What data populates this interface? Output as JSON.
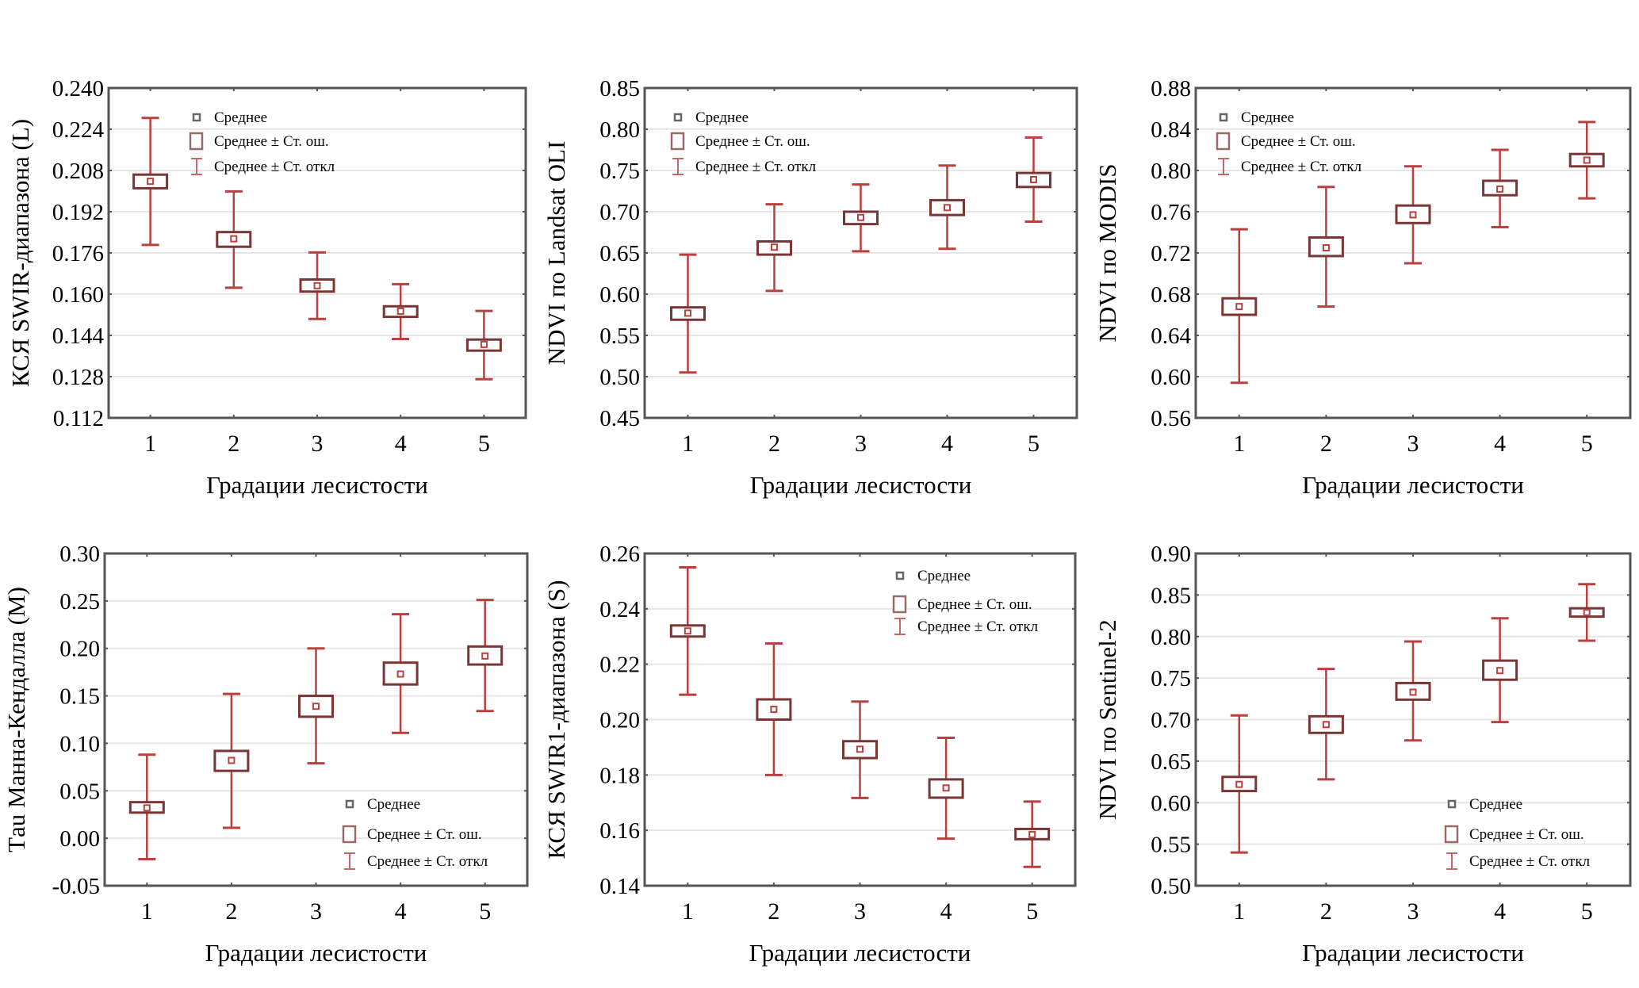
{
  "figure": {
    "colors": {
      "frame": "#555555",
      "grid": "#e6e6e6",
      "se_box": "#7a3535",
      "sd_whisker": "#b8413f",
      "mean_marker": "#b8413f",
      "legend_mean": "#666666",
      "legend_box": "#9a6a6a",
      "legend_whisker": "#cc6666"
    }
  },
  "chart_data": [
    {
      "type": "box",
      "title": "",
      "xlabel": "Градации лесистости",
      "ylabel": "КСЯ SWIR-диапазона (L)",
      "categories": [
        "1",
        "2",
        "3",
        "4",
        "5"
      ],
      "ylim": [
        0.112,
        0.24
      ],
      "yticks": [
        "0.240",
        "0.224",
        "0.208",
        "0.192",
        "0.176",
        "0.160",
        "0.144",
        "0.128",
        "0.112"
      ],
      "grid": true,
      "legend_position": "top-left",
      "legend": [
        "Среднее",
        "Среднее ± Ст. ош.",
        "Среднее ± Ст. откл"
      ],
      "series": [
        {
          "name": "Среднее",
          "values": [
            0.2038,
            0.1815,
            0.1633,
            0.1534,
            0.1405
          ]
        },
        {
          "name": "Среднее + Ст. ош.",
          "values": [
            0.2064,
            0.1841,
            0.1657,
            0.1553,
            0.1424
          ]
        },
        {
          "name": "Среднее - Ст. ош.",
          "values": [
            0.2011,
            0.1784,
            0.161,
            0.1512,
            0.1381
          ]
        },
        {
          "name": "Среднее + Ст. откл",
          "values": [
            0.2284,
            0.1999,
            0.1762,
            0.1639,
            0.1535
          ]
        },
        {
          "name": "Среднее - Ст. откл",
          "values": [
            0.1791,
            0.1625,
            0.1504,
            0.1426,
            0.127
          ]
        }
      ]
    },
    {
      "type": "box",
      "title": "",
      "xlabel": "Градации лесистости",
      "ylabel": "NDVI по Landsat OLI",
      "categories": [
        "1",
        "2",
        "3",
        "4",
        "5"
      ],
      "ylim": [
        0.45,
        0.85
      ],
      "yticks": [
        "0.85",
        "0.80",
        "0.75",
        "0.70",
        "0.65",
        "0.60",
        "0.55",
        "0.50",
        "0.45"
      ],
      "grid": true,
      "legend_position": "top-left",
      "legend": [
        "Среднее",
        "Среднее ± Ст. ош.",
        "Среднее ± Ст. откл"
      ],
      "series": [
        {
          "name": "Среднее",
          "values": [
            0.577,
            0.657,
            0.693,
            0.705,
            0.739
          ]
        },
        {
          "name": "Среднее + Ст. ош.",
          "values": [
            0.584,
            0.664,
            0.7,
            0.714,
            0.747
          ]
        },
        {
          "name": "Среднее - Ст. ош.",
          "values": [
            0.569,
            0.648,
            0.685,
            0.696,
            0.73
          ]
        },
        {
          "name": "Среднее + Ст. откл",
          "values": [
            0.648,
            0.709,
            0.733,
            0.756,
            0.79
          ]
        },
        {
          "name": "Среднее - Ст. откл",
          "values": [
            0.505,
            0.604,
            0.652,
            0.655,
            0.688
          ]
        }
      ]
    },
    {
      "type": "box",
      "title": "",
      "xlabel": "Градации лесистости",
      "ylabel": "NDVI по MODIS",
      "categories": [
        "1",
        "2",
        "3",
        "4",
        "5"
      ],
      "ylim": [
        0.56,
        0.88
      ],
      "yticks": [
        "0.88",
        "0.84",
        "0.80",
        "0.76",
        "0.72",
        "0.68",
        "0.64",
        "0.60",
        "0.56"
      ],
      "grid": true,
      "legend_position": "top-left",
      "legend": [
        "Среднее",
        "Среднее ± Ст. ош.",
        "Среднее ± Ст. откл"
      ],
      "series": [
        {
          "name": "Среднее",
          "values": [
            0.668,
            0.725,
            0.757,
            0.782,
            0.81
          ]
        },
        {
          "name": "Среднее + Ст. ош.",
          "values": [
            0.676,
            0.735,
            0.766,
            0.79,
            0.816
          ]
        },
        {
          "name": "Среднее - Ст. ош.",
          "values": [
            0.66,
            0.717,
            0.749,
            0.776,
            0.804
          ]
        },
        {
          "name": "Среднее + Ст. откл",
          "values": [
            0.743,
            0.784,
            0.804,
            0.82,
            0.847
          ]
        },
        {
          "name": "Среднее - Ст. откл",
          "values": [
            0.594,
            0.668,
            0.71,
            0.745,
            0.773
          ]
        }
      ]
    },
    {
      "type": "box",
      "title": "",
      "xlabel": "Градации лесистости",
      "ylabel": "Тau Манна-Кендалла (M)",
      "categories": [
        "1",
        "2",
        "3",
        "4",
        "5"
      ],
      "ylim": [
        -0.05,
        0.3
      ],
      "yticks": [
        "0.30",
        "0.25",
        "0.20",
        "0.15",
        "0.10",
        "0.05",
        "0.00",
        "-0.05"
      ],
      "grid": true,
      "legend_position": "bottom-right",
      "legend": [
        "Среднее",
        "Среднее ± Ст. ош.",
        "Среднее ± Ст. откл"
      ],
      "series": [
        {
          "name": "Среднее",
          "values": [
            0.032,
            0.082,
            0.139,
            0.173,
            0.192
          ]
        },
        {
          "name": "Среднее + Ст. ош.",
          "values": [
            0.038,
            0.092,
            0.15,
            0.185,
            0.202
          ]
        },
        {
          "name": "Среднее - Ст. ош.",
          "values": [
            0.027,
            0.071,
            0.128,
            0.162,
            0.183
          ]
        },
        {
          "name": "Среднее + Ст. откл",
          "values": [
            0.088,
            0.152,
            0.2,
            0.236,
            0.251
          ]
        },
        {
          "name": "Среднее - Ст. откл",
          "values": [
            -0.022,
            0.011,
            0.079,
            0.111,
            0.134
          ]
        }
      ]
    },
    {
      "type": "box",
      "title": "",
      "xlabel": "Градации лесистости",
      "ylabel": "КСЯ SWIR1-диапазона (S)",
      "categories": [
        "1",
        "2",
        "3",
        "4",
        "5"
      ],
      "ylim": [
        0.14,
        0.26
      ],
      "yticks": [
        "0.26",
        "0.24",
        "0.22",
        "0.20",
        "0.18",
        "0.16",
        "0.14"
      ],
      "grid": true,
      "legend_position": "top-right",
      "legend": [
        "Среднее",
        "Среднее ± Ст. ош.",
        "Среднее ± Ст. откл"
      ],
      "series": [
        {
          "name": "Среднее",
          "values": [
            0.232,
            0.2037,
            0.1893,
            0.1753,
            0.1585
          ]
        },
        {
          "name": "Среднее + Ст. ош.",
          "values": [
            0.234,
            0.2073,
            0.1922,
            0.1784,
            0.1605
          ]
        },
        {
          "name": "Среднее - Ст. ош.",
          "values": [
            0.23,
            0.2,
            0.1861,
            0.1718,
            0.1568
          ]
        },
        {
          "name": "Среднее + Ст. откл",
          "values": [
            0.255,
            0.2275,
            0.2065,
            0.1934,
            0.1704
          ]
        },
        {
          "name": "Среднее - Ст. откл",
          "values": [
            0.209,
            0.18,
            0.1717,
            0.157,
            0.1468
          ]
        }
      ]
    },
    {
      "type": "box",
      "title": "",
      "xlabel": "Градации лесистости",
      "ylabel": "NDVI по Sentinel-2",
      "categories": [
        "1",
        "2",
        "3",
        "4",
        "5"
      ],
      "ylim": [
        0.5,
        0.9
      ],
      "yticks": [
        "0.90",
        "0.85",
        "0.80",
        "0.75",
        "0.70",
        "0.65",
        "0.60",
        "0.55",
        "0.50"
      ],
      "grid": true,
      "legend_position": "bottom-right",
      "legend": [
        "Среднее",
        "Среднее ± Ст. ош.",
        "Среднее ± Ст. откл"
      ],
      "series": [
        {
          "name": "Среднее",
          "values": [
            0.622,
            0.694,
            0.733,
            0.759,
            0.829
          ]
        },
        {
          "name": "Среднее + Ст. ош.",
          "values": [
            0.631,
            0.704,
            0.744,
            0.771,
            0.834
          ]
        },
        {
          "name": "Среднее - Ст. ош.",
          "values": [
            0.614,
            0.684,
            0.724,
            0.748,
            0.824
          ]
        },
        {
          "name": "Среднее + Ст. откл",
          "values": [
            0.705,
            0.761,
            0.794,
            0.822,
            0.863
          ]
        },
        {
          "name": "Среднее - Ст. откл",
          "values": [
            0.54,
            0.628,
            0.675,
            0.697,
            0.795
          ]
        }
      ]
    }
  ]
}
